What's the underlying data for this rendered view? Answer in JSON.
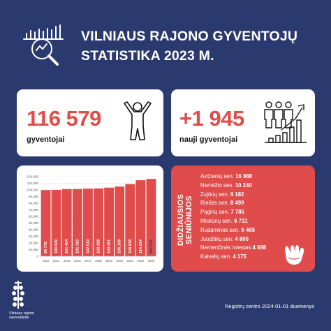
{
  "header": {
    "title_line1": "VILNIAUS RAJONO GYVENTOJŲ",
    "title_line2": "STATISTIKA 2023 M.",
    "icon": "magnifier-bar-chart-icon"
  },
  "population": {
    "value": "116 579",
    "label": "gyventojai",
    "icon": "person-icon"
  },
  "new_residents": {
    "value": "+1 945",
    "label": "nauji gyventojai",
    "icon": "people-growth-icon"
  },
  "chart_data": {
    "type": "bar",
    "categories": [
      "2012",
      "2014",
      "2015",
      "2016",
      "2017",
      "2018",
      "2019",
      "2020",
      "2021",
      "2022",
      "2023"
    ],
    "values": [
      99779,
      100049,
      101404,
      101410,
      102014,
      102288,
      103481,
      105109,
      108828,
      114634,
      116579
    ],
    "value_labels": [
      "99 779",
      "100 049",
      "101 404",
      "101 410",
      "102 014",
      "102 288",
      "103 481",
      "105 109",
      "108 828",
      "114 634",
      "116 579"
    ],
    "ylim": [
      0,
      120000
    ],
    "yticks": [
      0,
      10000,
      20000,
      30000,
      40000,
      50000,
      60000,
      70000,
      80000,
      90000,
      100000,
      110000,
      120000
    ],
    "ytick_labels": [
      "0",
      "10,000",
      "20,000",
      "30,000",
      "40,000",
      "50,000",
      "60,000",
      "70,000",
      "80,000",
      "90,000",
      "100,000",
      "110,000",
      "120,000"
    ],
    "grid": true,
    "colors": {
      "bar": "#e04c4c",
      "label": "#ffffff",
      "last_label": "#2b3a6e"
    }
  },
  "seniunijos": {
    "title": "DIDŽIAUSIOS SENIŪNIJOS",
    "items": [
      {
        "name": "Avižienių sen.",
        "value": "16 988"
      },
      {
        "name": "Nemėžio sen.",
        "value": "10 240"
      },
      {
        "name": "Zujūnų sen.",
        "value": "9 182"
      },
      {
        "name": "Riešės sen.",
        "value": "8 499"
      },
      {
        "name": "Pagirių sen.",
        "value": "7 785"
      },
      {
        "name": "Mickūnų sen.",
        "value": "6 731"
      },
      {
        "name": "Rudaminos sen.",
        "value": "6 465"
      },
      {
        "name": "Juodšilių sen.",
        "value": "4 800"
      },
      {
        "name": "Nemenčinės miestas",
        "value": "4 688"
      },
      {
        "name": "Kalvelių sen.",
        "value": "4 175"
      }
    ],
    "icon": "hand-icon"
  },
  "logo": {
    "line1": "Vilniaus rajono",
    "line2": "savivaldybė",
    "icon": "coat-of-arms-icon"
  },
  "footer": "Registrų centro 2024-01-01 duomenys",
  "colors": {
    "background": "#2b3a6e",
    "accent": "#e04c4c",
    "card": "#ffffff"
  }
}
